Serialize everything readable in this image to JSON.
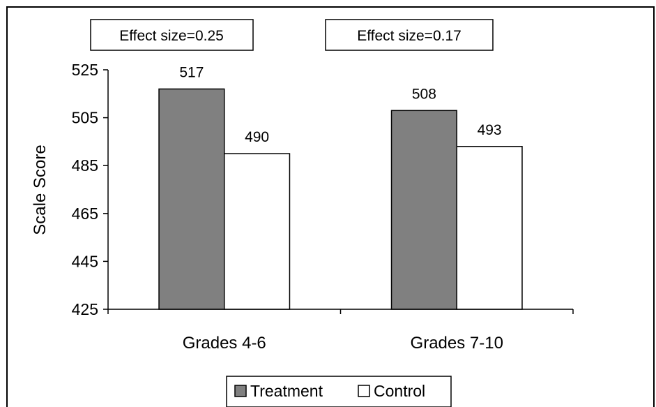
{
  "chart_data": {
    "type": "bar",
    "categories": [
      "Grades 4-6",
      "Grades 7-10"
    ],
    "series": [
      {
        "name": "Treatment",
        "values": [
          517,
          508
        ],
        "color": "#808080"
      },
      {
        "name": "Control",
        "values": [
          490,
          493
        ],
        "color": "#ffffff"
      }
    ],
    "ylabel": "Scale Score",
    "xlabel": "",
    "ylim": [
      425,
      525
    ],
    "yticks": [
      425,
      445,
      465,
      485,
      505,
      525
    ],
    "annotations": [
      "Effect size=0.25",
      "Effect size=0.17"
    ],
    "legend_position": "bottom-center",
    "grid": false
  }
}
